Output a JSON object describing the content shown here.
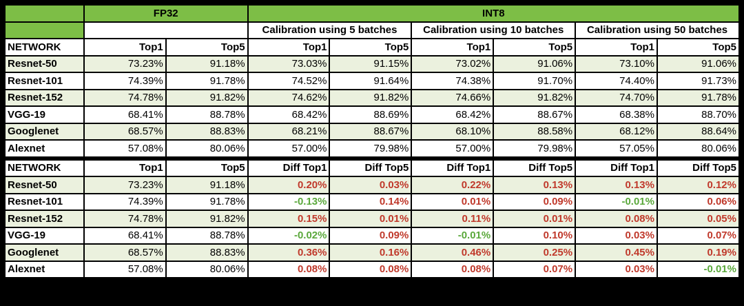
{
  "header": {
    "fp32": "FP32",
    "int8": "INT8",
    "calibrations": [
      "Calibration using 5 batches",
      "Calibration using 10 batches",
      "Calibration using 50 batches"
    ]
  },
  "top_section": {
    "columns": [
      "NETWORK",
      "Top1",
      "Top5",
      "Top1",
      "Top5",
      "Top1",
      "Top5",
      "Top1",
      "Top5"
    ],
    "rows": [
      [
        "Resnet-50",
        "73.23%",
        "91.18%",
        "73.03%",
        "91.15%",
        "73.02%",
        "91.06%",
        "73.10%",
        "91.06%"
      ],
      [
        "Resnet-101",
        "74.39%",
        "91.78%",
        "74.52%",
        "91.64%",
        "74.38%",
        "91.70%",
        "74.40%",
        "91.73%"
      ],
      [
        "Resnet-152",
        "74.78%",
        "91.82%",
        "74.62%",
        "91.82%",
        "74.66%",
        "91.82%",
        "74.70%",
        "91.78%"
      ],
      [
        "VGG-19",
        "68.41%",
        "88.78%",
        "68.42%",
        "88.69%",
        "68.42%",
        "88.67%",
        "68.38%",
        "88.70%"
      ],
      [
        "Googlenet",
        "68.57%",
        "88.83%",
        "68.21%",
        "88.67%",
        "68.10%",
        "88.58%",
        "68.12%",
        "88.64%"
      ],
      [
        "Alexnet",
        "57.08%",
        "80.06%",
        "57.00%",
        "79.98%",
        "57.00%",
        "79.98%",
        "57.05%",
        "80.06%"
      ]
    ]
  },
  "diff_section": {
    "columns": [
      "NETWORK",
      "Top1",
      "Top5",
      "Diff Top1",
      "Diff Top5",
      "Diff Top1",
      "Diff Top5",
      "Diff Top1",
      "Diff Top5"
    ],
    "rows": [
      [
        "Resnet-50",
        "73.23%",
        "91.18%",
        "0.20%",
        "0.03%",
        "0.22%",
        "0.13%",
        "0.13%",
        "0.12%"
      ],
      [
        "Resnet-101",
        "74.39%",
        "91.78%",
        "-0.13%",
        "0.14%",
        "0.01%",
        "0.09%",
        "-0.01%",
        "0.06%"
      ],
      [
        "Resnet-152",
        "74.78%",
        "91.82%",
        "0.15%",
        "0.01%",
        "0.11%",
        "0.01%",
        "0.08%",
        "0.05%"
      ],
      [
        "VGG-19",
        "68.41%",
        "88.78%",
        "-0.02%",
        "0.09%",
        "-0.01%",
        "0.10%",
        "0.03%",
        "0.07%"
      ],
      [
        "Googlenet",
        "68.57%",
        "88.83%",
        "0.36%",
        "0.16%",
        "0.46%",
        "0.25%",
        "0.45%",
        "0.19%"
      ],
      [
        "Alexnet",
        "57.08%",
        "80.06%",
        "0.08%",
        "0.08%",
        "0.08%",
        "0.07%",
        "0.03%",
        "-0.01%"
      ]
    ]
  },
  "colors": {
    "header_green": "#7dbe46",
    "row_tint": "#ebf1de",
    "positive_diff": "#c0392b",
    "negative_diff": "#5aa83b"
  }
}
